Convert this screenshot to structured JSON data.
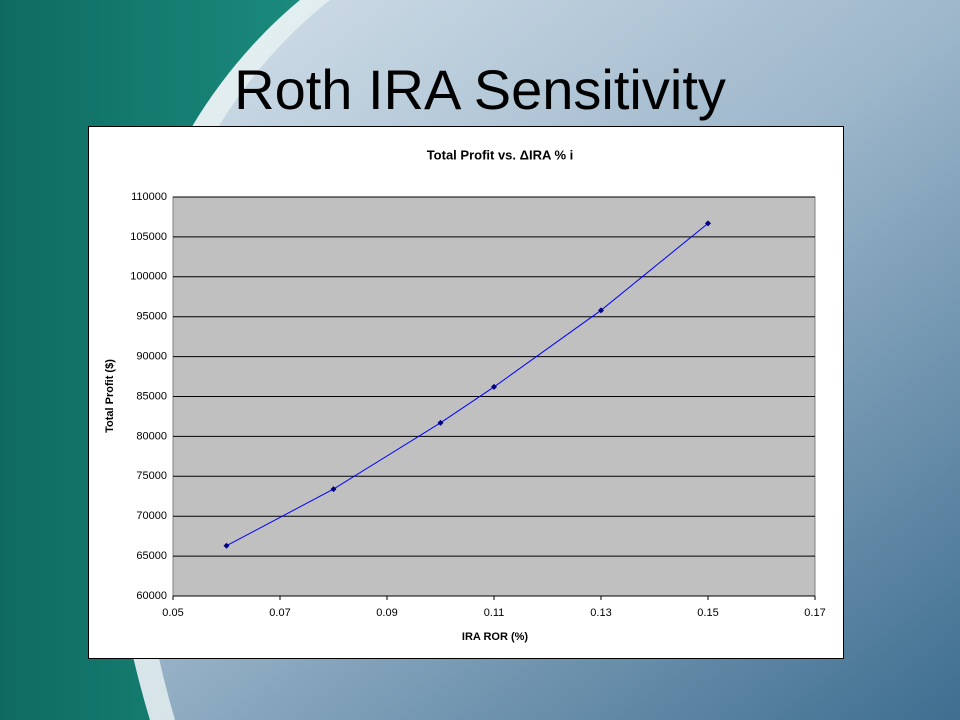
{
  "slide_title": "Roth IRA Sensitivity",
  "chart_data": {
    "type": "line",
    "title": "Total Profit vs. ΔIRA % i",
    "x_label": "IRA ROR (%)",
    "y_label": "Total Profit ($)",
    "x": [
      0.06,
      0.08,
      0.1,
      0.11,
      0.13,
      0.15
    ],
    "series": [
      {
        "name": "Total Profit",
        "color": "#000080",
        "values": [
          66300,
          73400,
          81700,
          86200,
          95800,
          106700
        ]
      }
    ],
    "xlim": [
      0.05,
      0.17
    ],
    "xticks": [
      0.05,
      0.07,
      0.09,
      0.11,
      0.13,
      0.15,
      0.17
    ],
    "ylim": [
      60000,
      110000
    ],
    "yticks": [
      60000,
      65000,
      70000,
      75000,
      80000,
      85000,
      90000,
      95000,
      100000,
      105000,
      110000
    ],
    "grid": true,
    "plot_background": "#c0c0c0"
  }
}
